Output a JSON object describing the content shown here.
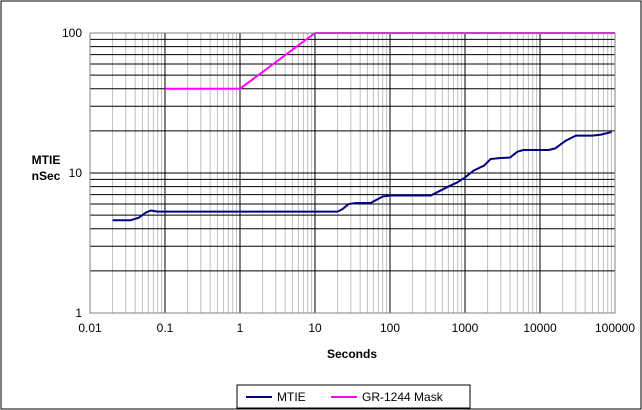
{
  "chart_data": {
    "type": "line",
    "xlabel": "Seconds",
    "ylabel": [
      "MTIE",
      "nSec"
    ],
    "x_scale": "log",
    "y_scale": "log",
    "xlim": [
      0.01,
      100000
    ],
    "ylim": [
      1,
      100
    ],
    "x_ticks": [
      "0.01",
      "0.1",
      "1",
      "10",
      "100",
      "1000",
      "10000",
      "100000"
    ],
    "y_ticks": [
      "1",
      "10",
      "100"
    ],
    "grid": true,
    "legend_position": "bottom",
    "series": [
      {
        "name": "MTIE",
        "color": "#000080",
        "points": [
          [
            0.02,
            4.6
          ],
          [
            0.03,
            4.6
          ],
          [
            0.035,
            4.6
          ],
          [
            0.045,
            4.8
          ],
          [
            0.055,
            5.2
          ],
          [
            0.065,
            5.4
          ],
          [
            0.08,
            5.3
          ],
          [
            0.1,
            5.3
          ],
          [
            0.5,
            5.3
          ],
          [
            1,
            5.3
          ],
          [
            5,
            5.3
          ],
          [
            10,
            5.3
          ],
          [
            20,
            5.3
          ],
          [
            23,
            5.5
          ],
          [
            28,
            6.0
          ],
          [
            35,
            6.1
          ],
          [
            55,
            6.1
          ],
          [
            65,
            6.4
          ],
          [
            80,
            6.8
          ],
          [
            100,
            6.9
          ],
          [
            200,
            6.9
          ],
          [
            350,
            6.9
          ],
          [
            450,
            7.4
          ],
          [
            600,
            8.0
          ],
          [
            800,
            8.6
          ],
          [
            1000,
            9.3
          ],
          [
            1300,
            10.4
          ],
          [
            1800,
            11.3
          ],
          [
            2200,
            12.6
          ],
          [
            3000,
            12.8
          ],
          [
            4000,
            12.9
          ],
          [
            5000,
            14.2
          ],
          [
            6000,
            14.6
          ],
          [
            10000,
            14.6
          ],
          [
            13000,
            14.6
          ],
          [
            16000,
            15.0
          ],
          [
            22000,
            17.0
          ],
          [
            30000,
            18.5
          ],
          [
            50000,
            18.5
          ],
          [
            65000,
            18.8
          ],
          [
            90000,
            19.6
          ]
        ]
      },
      {
        "name": "GR-1244 Mask",
        "color": "#ff00ff",
        "points": [
          [
            0.1,
            40
          ],
          [
            1,
            40
          ],
          [
            10,
            100
          ],
          [
            100000,
            100
          ]
        ]
      }
    ]
  }
}
